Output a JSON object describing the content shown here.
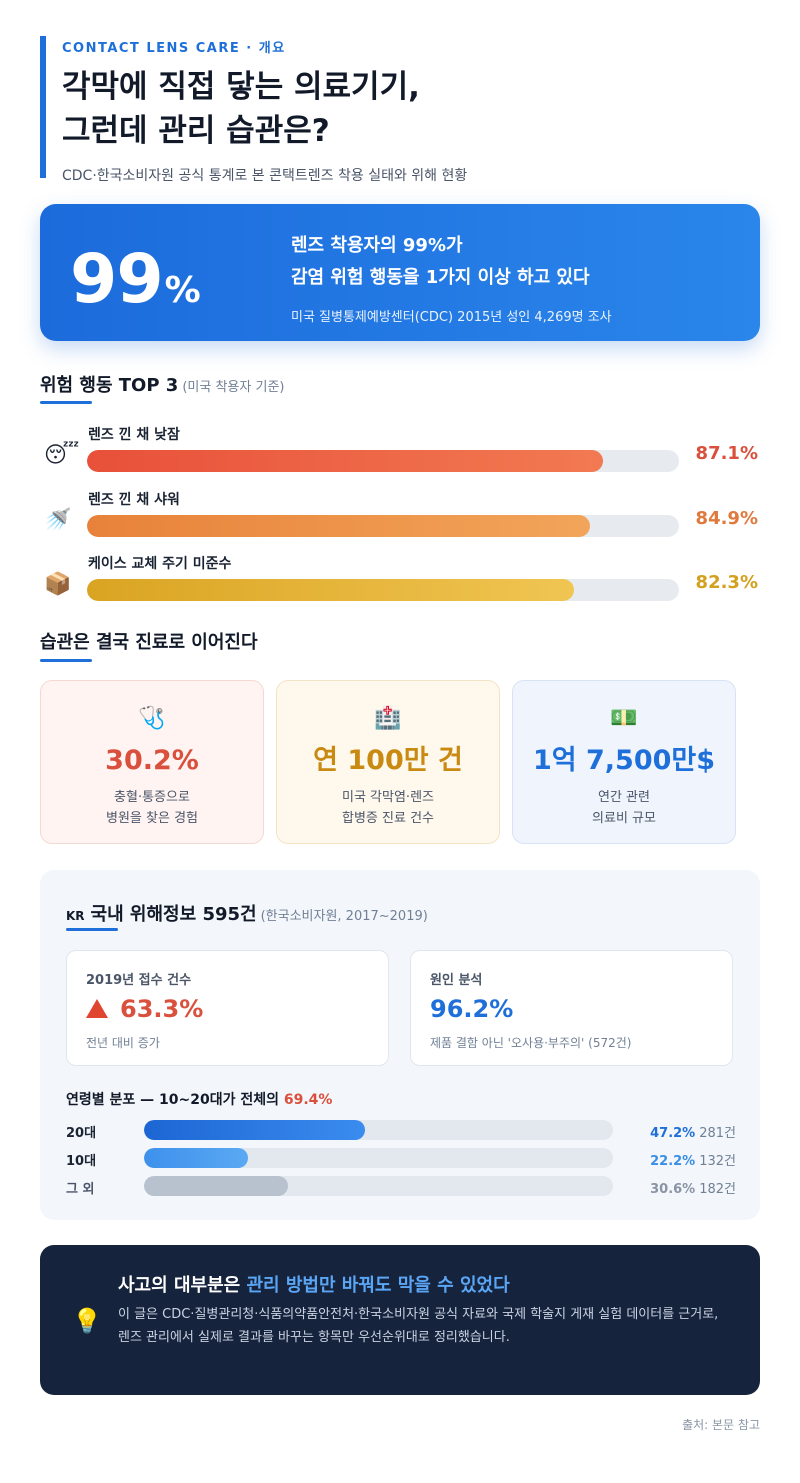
{
  "header": {
    "eyebrow": "CONTACT LENS CARE · 개요",
    "title_line1": "각막에 직접 닿는 의료기기,",
    "title_line2": "그런데 관리 습관은?",
    "subtitle": "CDC·한국소비자원 공식 통계로 본 콘택트렌즈 착용 실태와 위해 현황"
  },
  "hero": {
    "number": "99",
    "unit": "%",
    "line1": "렌즈 착용자의 99%가",
    "line2": "감염 위험 행동을 1가지 이상 하고 있다",
    "source": "미국 질병통제예방센터(CDC) 2015년 성인 4,269명 조사"
  },
  "risk_section": {
    "title": "위험 행동 TOP 3",
    "aside": "(미국 착용자 기준)",
    "items": [
      {
        "icon": "sleeping-face-icon",
        "glyph": "😴",
        "label": "렌즈 낀 채 낮잠",
        "value_text": "87.1%",
        "value": 87.1,
        "color": "#d9503c",
        "grad_from": "#e8503a",
        "grad_to": "#f27a52"
      },
      {
        "icon": "shower-icon",
        "glyph": "🚿",
        "label": "렌즈 낀 채 샤워",
        "value_text": "84.9%",
        "value": 84.9,
        "color": "#e0793c",
        "grad_from": "#e8823a",
        "grad_to": "#f2a55a"
      },
      {
        "icon": "box-icon",
        "glyph": "📦",
        "label": "케이스 교체 주기 미준수",
        "value_text": "82.3%",
        "value": 82.3,
        "color": "#d4a020",
        "grad_from": "#daa422",
        "grad_to": "#f0c552"
      }
    ]
  },
  "habit_section": {
    "title": "습관은 결국 진료로 이어진다",
    "cards": [
      {
        "icon": "stethoscope-icon",
        "glyph": "🩺",
        "big": "30.2%",
        "big_color": "#d9503c",
        "bg": "#fff4f2",
        "border": "#f4d9d2",
        "desc1": "충혈·통증으로",
        "desc2": "병원을 찾은 경험"
      },
      {
        "icon": "hospital-chart-icon",
        "glyph": "🏥",
        "big": "연 100만 건",
        "big_color": "#c98a12",
        "bg": "#fff8ec",
        "border": "#f3e3c6",
        "desc1": "미국 각막염·렌즈",
        "desc2": "합병증 진료 건수"
      },
      {
        "icon": "money-icon",
        "glyph": "💵",
        "big": "1억 7,500만$",
        "big_color": "#1e6fd9",
        "bg": "#f0f5fd",
        "border": "#d7e3f5",
        "desc1": "연간 관련",
        "desc2": "의료비 규모"
      }
    ]
  },
  "kr_panel": {
    "flag": "KR",
    "title": "국내 위해정보 595건",
    "aside": "(한국소비자원, 2017~2019)",
    "box1": {
      "label": "2019년 접수 건수",
      "value": "63.3%",
      "sub": "전년 대비 증가",
      "color": "#d9503c"
    },
    "box2": {
      "label": "원인 분석",
      "value": "96.2%",
      "sub": "제품 결함 아닌 '오사용·부주의' (572건)",
      "color": "#1e6fd9"
    },
    "age_title_prefix": "연령별 분포 — 10~20대가 전체의 ",
    "age_title_highlight": "69.4%",
    "ages": [
      {
        "label": "20대",
        "pct_text": "47.2%",
        "pct": 47.2,
        "count": "281건",
        "color": "#1e6fd9",
        "fill_from": "#1c66d4",
        "fill_to": "#3b8cef"
      },
      {
        "label": "10대",
        "pct_text": "22.2%",
        "pct": 22.2,
        "count": "132건",
        "color": "#3a8ee6",
        "fill_from": "#3e91ec",
        "fill_to": "#5aa9f3"
      },
      {
        "label": "그 외",
        "pct_text": "30.6%",
        "pct": 30.6,
        "count": "182건",
        "color": "#8a94a5",
        "fill_from": "#b8c2cf",
        "fill_to": "#b8c2cf"
      }
    ]
  },
  "callout": {
    "icon": "lightbulb-icon",
    "glyph": "💡",
    "title_prefix": "사고의 대부분은 ",
    "title_highlight": "관리 방법만 바꿔도 막을 수 있었다",
    "body_line1": "이 글은 CDC·질병관리청·식품의약품안전처·한국소비자원 공식 자료와 국제 학술지 게재 실험 데이터를 근거로,",
    "body_line2": "렌즈 관리에서 실제로 결과를 바꾸는 항목만 우선순위대로 정리했습니다."
  },
  "footnote": "출처: 본문 참고"
}
